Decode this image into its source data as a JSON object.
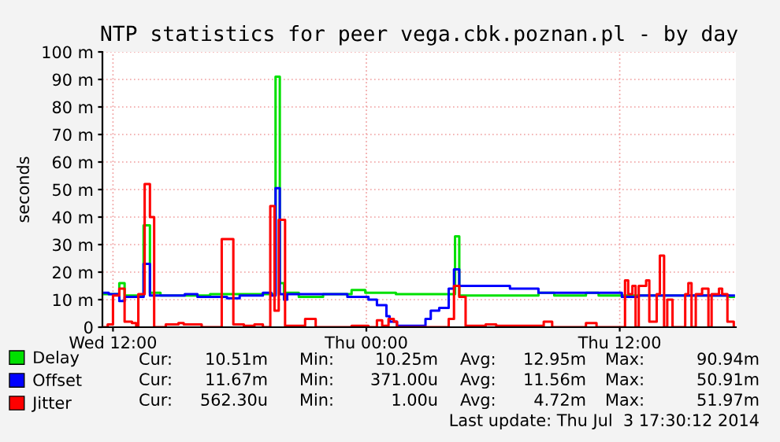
{
  "chart_data": {
    "type": "step",
    "title": "NTP statistics for peer vega.cbk.poznan.pl - by day",
    "ylabel": "seconds",
    "xlim": [
      "2014-07-02T11:30",
      "2014-07-03T17:30"
    ],
    "xticks": [
      {
        "value": "2014-07-02T12:00",
        "label": "Wed 12:00"
      },
      {
        "value": "2014-07-03T00:00",
        "label": "Thu 00:00"
      },
      {
        "value": "2014-07-03T12:00",
        "label": "Thu 12:00"
      }
    ],
    "ylim": [
      0,
      100
    ],
    "yticks": [
      0,
      {
        "value": 10,
        "label": "10 m"
      },
      {
        "value": 20,
        "label": "20 m"
      },
      {
        "value": 30,
        "label": "30 m"
      },
      {
        "value": 40,
        "label": "40 m"
      },
      {
        "value": 50,
        "label": "50 m"
      },
      {
        "value": 60,
        "label": "60 m"
      },
      {
        "value": 70,
        "label": "70 m"
      },
      {
        "value": 80,
        "label": "80 m"
      },
      {
        "value": 90,
        "label": "90 m"
      },
      {
        "value": 100,
        "label": "100 m"
      }
    ],
    "grid": true,
    "legend": "bottom left",
    "series": [
      {
        "name": "Delay",
        "color": "#00e000",
        "x": [
          "2014-07-02T11:36",
          "2014-07-02T12:18",
          "2014-07-02T12:33",
          "2014-07-02T13:27",
          "2014-07-02T13:45",
          "2014-07-02T14:15",
          "2014-07-02T16:36",
          "2014-07-02T18:12",
          "2014-07-02T19:42",
          "2014-07-02T19:54",
          "2014-07-02T20:06",
          "2014-07-02T20:48",
          "2014-07-02T21:57",
          "2014-07-02T23:18",
          "2014-07-02T23:57",
          "2014-07-03T01:24",
          "2014-07-03T03:54",
          "2014-07-03T04:12",
          "2014-07-03T04:24",
          "2014-07-03T08:09",
          "2014-07-03T08:54",
          "2014-07-03T10:24",
          "2014-07-03T11:00",
          "2014-07-03T17:12",
          "2014-07-03T17:24"
        ],
        "values": [
          12,
          16,
          11.5,
          37,
          12.5,
          11.5,
          12,
          12,
          91,
          16,
          12.5,
          11,
          12,
          13.5,
          12.5,
          12,
          12,
          33,
          11.5,
          12.5,
          11.5,
          12.5,
          11.5,
          11,
          11
        ]
      },
      {
        "name": "Offset",
        "color": "#0000ff",
        "x": [
          "2014-07-02T11:36",
          "2014-07-02T11:48",
          "2014-07-02T12:18",
          "2014-07-02T12:33",
          "2014-07-02T13:27",
          "2014-07-02T13:45",
          "2014-07-02T15:24",
          "2014-07-02T16:00",
          "2014-07-02T17:24",
          "2014-07-02T18:00",
          "2014-07-02T19:06",
          "2014-07-02T19:30",
          "2014-07-02T19:42",
          "2014-07-02T19:54",
          "2014-07-02T20:06",
          "2014-07-02T20:15",
          "2014-07-02T23:06",
          "2014-07-03T00:06",
          "2014-07-03T00:30",
          "2014-07-03T00:57",
          "2014-07-03T01:06",
          "2014-07-03T01:27",
          "2014-07-03T02:48",
          "2014-07-03T03:03",
          "2014-07-03T03:27",
          "2014-07-03T03:54",
          "2014-07-03T04:09",
          "2014-07-03T04:24",
          "2014-07-03T06:48",
          "2014-07-03T08:09",
          "2014-07-03T12:06",
          "2014-07-03T12:54",
          "2014-07-03T17:24"
        ],
        "values": [
          12.5,
          12,
          9.5,
          11,
          23,
          11.5,
          12,
          11,
          10.5,
          11.5,
          12.5,
          11.5,
          50.5,
          12,
          10,
          12,
          11,
          10,
          8,
          4,
          2,
          0.5,
          3,
          6,
          7,
          14,
          21,
          15,
          14,
          12.5,
          11,
          11.5,
          11.5
        ]
      },
      {
        "name": "Jitter",
        "color": "#ff0000",
        "x": [
          "2014-07-02T11:36",
          "2014-07-02T11:45",
          "2014-07-02T12:00",
          "2014-07-02T12:18",
          "2014-07-02T12:33",
          "2014-07-02T12:54",
          "2014-07-02T13:06",
          "2014-07-02T13:12",
          "2014-07-02T13:30",
          "2014-07-02T13:45",
          "2014-07-02T13:57",
          "2014-07-02T14:30",
          "2014-07-02T15:06",
          "2014-07-02T15:21",
          "2014-07-02T16:12",
          "2014-07-02T17:09",
          "2014-07-02T17:42",
          "2014-07-02T18:12",
          "2014-07-02T18:42",
          "2014-07-02T19:06",
          "2014-07-02T19:27",
          "2014-07-02T19:39",
          "2014-07-02T19:51",
          "2014-07-02T20:09",
          "2014-07-02T21:06",
          "2014-07-02T21:36",
          "2014-07-02T23:18",
          "2014-07-03T00:06",
          "2014-07-03T00:30",
          "2014-07-03T00:45",
          "2014-07-03T01:03",
          "2014-07-03T01:18",
          "2014-07-03T01:27",
          "2014-07-03T03:54",
          "2014-07-03T04:09",
          "2014-07-03T04:24",
          "2014-07-03T04:42",
          "2014-07-03T05:39",
          "2014-07-03T06:09",
          "2014-07-03T08:24",
          "2014-07-03T08:48",
          "2014-07-03T10:24",
          "2014-07-03T10:54",
          "2014-07-03T12:15",
          "2014-07-03T12:24",
          "2014-07-03T12:36",
          "2014-07-03T12:45",
          "2014-07-03T12:54",
          "2014-07-03T13:15",
          "2014-07-03T13:24",
          "2014-07-03T13:45",
          "2014-07-03T13:54",
          "2014-07-03T14:06",
          "2014-07-03T14:15",
          "2014-07-03T14:30",
          "2014-07-03T15:06",
          "2014-07-03T15:15",
          "2014-07-03T15:24",
          "2014-07-03T15:36",
          "2014-07-03T15:54",
          "2014-07-03T16:12",
          "2014-07-03T16:21",
          "2014-07-03T16:42",
          "2014-07-03T16:51",
          "2014-07-03T17:06",
          "2014-07-03T17:24"
        ],
        "values": [
          0,
          1,
          11.5,
          14,
          2,
          1.5,
          0,
          12,
          52,
          40,
          0,
          1,
          1.5,
          1,
          0,
          32,
          1,
          0.5,
          1,
          0,
          44,
          6,
          39,
          0.5,
          3,
          0,
          0.5,
          0,
          2.5,
          0.5,
          3,
          2,
          0,
          3,
          15,
          11,
          0.5,
          1,
          0.5,
          2,
          0,
          1.5,
          0,
          17,
          12,
          15,
          0,
          15,
          17,
          2,
          12,
          26,
          0,
          10,
          0,
          12,
          16,
          0,
          12,
          14,
          0,
          12,
          14,
          12,
          2,
          0
        ]
      }
    ],
    "annotations": [
      "Cur:",
      "10.51m",
      "Min:",
      "10.25m",
      "Avg:",
      "12.95m",
      "Max:",
      "90.94m",
      "Cur:",
      "11.67m",
      "Min:",
      "371.00u",
      "Avg:",
      "11.56m",
      "Max:",
      "50.91m",
      "Cur:",
      "562.30u",
      "Min:",
      "1.00u",
      "Avg:",
      "4.72m",
      "Max:",
      "51.97m",
      "Last update: Thu Jul  3 17:30:12 2014"
    ]
  }
}
